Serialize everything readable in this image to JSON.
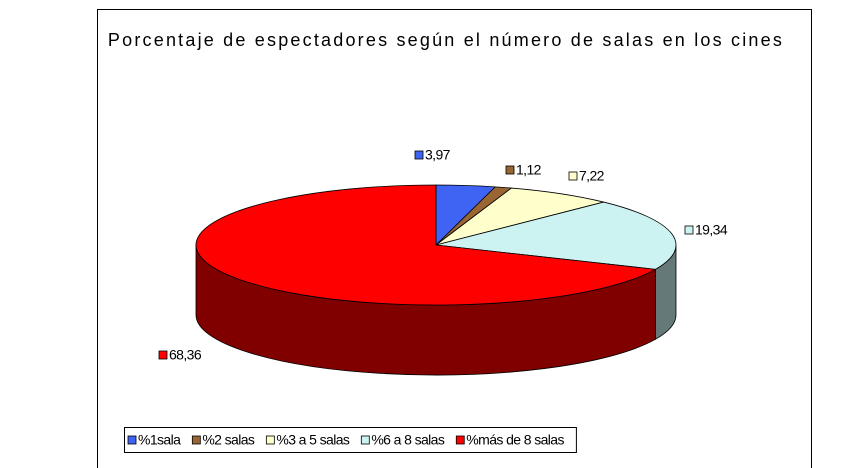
{
  "chart_data": {
    "type": "pie3d",
    "title": "Porcentaje de espectadores según el número de salas en los cines",
    "categories": [
      "%1sala",
      "%2 salas",
      "%3 a 5 salas",
      "%6 a 8 salas",
      "%más de 8 salas"
    ],
    "values": [
      3.97,
      1.12,
      7.22,
      19.34,
      68.36
    ],
    "value_labels": [
      "3,97",
      "1,12",
      "7,22",
      "19,34",
      "68,36"
    ],
    "colors": [
      "#3f63f3",
      "#996633",
      "#ffffcc",
      "#ccf2f2",
      "#ff0000"
    ],
    "legend": "bottom"
  }
}
